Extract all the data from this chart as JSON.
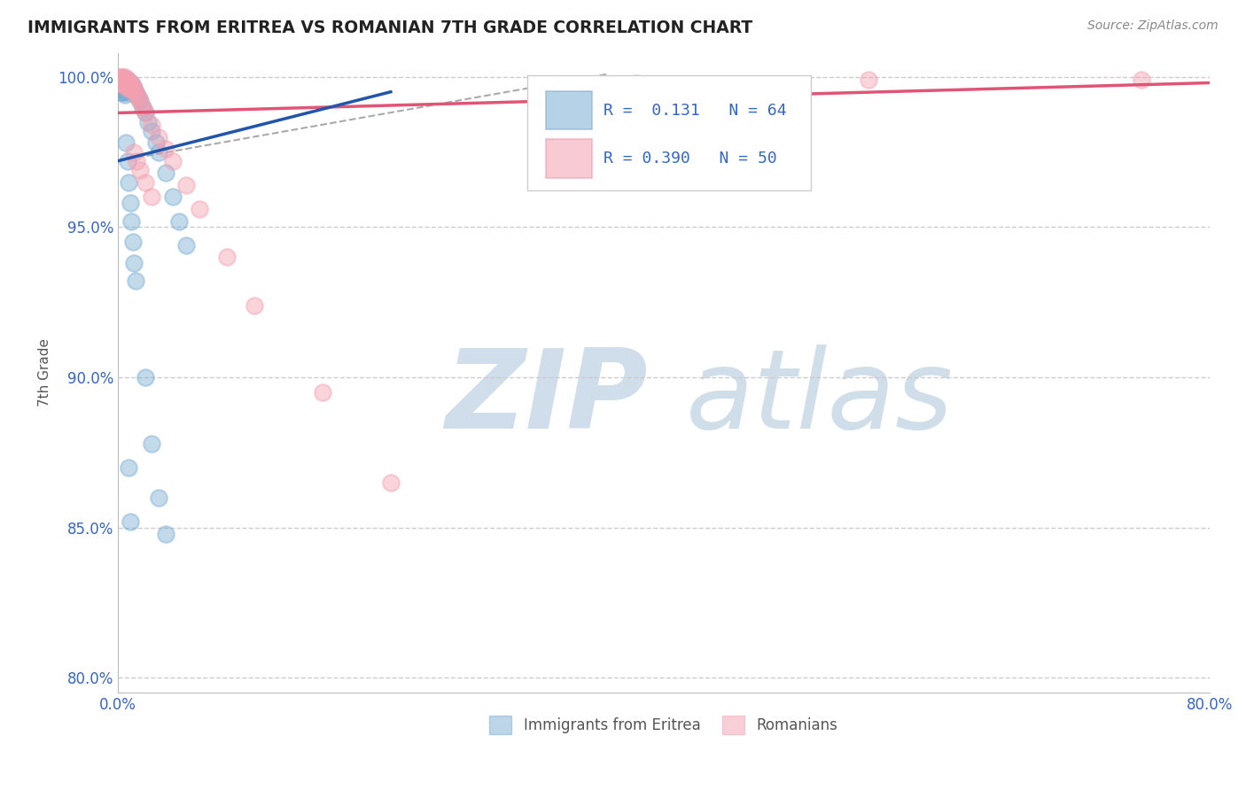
{
  "title": "IMMIGRANTS FROM ERITREA VS ROMANIAN 7TH GRADE CORRELATION CHART",
  "source": "Source: ZipAtlas.com",
  "ylabel": "7th Grade",
  "xlim": [
    0.0,
    0.8
  ],
  "ylim": [
    0.795,
    1.008
  ],
  "yticks": [
    0.8,
    0.85,
    0.9,
    0.95,
    1.0
  ],
  "yticklabels": [
    "80.0%",
    "85.0%",
    "90.0%",
    "95.0%",
    "100.0%"
  ],
  "grid_color": "#cccccc",
  "background": "#ffffff",
  "blue_color": "#7aadd4",
  "pink_color": "#f4a0b0",
  "blue_line_color": "#2255aa",
  "pink_line_color": "#e05575",
  "dash_color": "#aaaaaa",
  "eritrea_x": [
    0.001,
    0.001,
    0.001,
    0.001,
    0.002,
    0.002,
    0.002,
    0.002,
    0.002,
    0.003,
    0.003,
    0.003,
    0.003,
    0.003,
    0.004,
    0.004,
    0.004,
    0.004,
    0.005,
    0.005,
    0.005,
    0.005,
    0.006,
    0.006,
    0.006,
    0.007,
    0.007,
    0.007,
    0.008,
    0.008,
    0.009,
    0.009,
    0.01,
    0.01,
    0.011,
    0.012,
    0.013,
    0.014,
    0.015,
    0.016,
    0.018,
    0.02,
    0.022,
    0.025,
    0.028,
    0.03,
    0.035,
    0.04,
    0.045,
    0.05,
    0.006,
    0.007,
    0.008,
    0.009,
    0.01,
    0.011,
    0.012,
    0.013,
    0.02,
    0.025,
    0.03,
    0.035,
    0.008,
    0.009
  ],
  "eritrea_y": [
    0.999,
    0.998,
    0.997,
    0.996,
    0.999,
    0.998,
    0.997,
    0.996,
    0.995,
    0.999,
    0.998,
    0.997,
    0.996,
    0.995,
    0.999,
    0.998,
    0.997,
    0.995,
    0.999,
    0.998,
    0.996,
    0.994,
    0.999,
    0.998,
    0.996,
    0.999,
    0.997,
    0.995,
    0.998,
    0.996,
    0.998,
    0.996,
    0.998,
    0.996,
    0.997,
    0.996,
    0.995,
    0.994,
    0.993,
    0.992,
    0.99,
    0.988,
    0.985,
    0.982,
    0.978,
    0.975,
    0.968,
    0.96,
    0.952,
    0.944,
    0.978,
    0.972,
    0.965,
    0.958,
    0.952,
    0.945,
    0.938,
    0.932,
    0.9,
    0.878,
    0.86,
    0.848,
    0.87,
    0.852
  ],
  "romanian_x": [
    0.001,
    0.001,
    0.002,
    0.002,
    0.002,
    0.003,
    0.003,
    0.003,
    0.004,
    0.004,
    0.004,
    0.005,
    0.005,
    0.005,
    0.006,
    0.006,
    0.007,
    0.007,
    0.008,
    0.008,
    0.009,
    0.009,
    0.01,
    0.01,
    0.011,
    0.012,
    0.013,
    0.014,
    0.015,
    0.016,
    0.018,
    0.02,
    0.025,
    0.03,
    0.035,
    0.04,
    0.05,
    0.06,
    0.08,
    0.1,
    0.15,
    0.2,
    0.012,
    0.014,
    0.016,
    0.02,
    0.025,
    0.55,
    0.75,
    0.38
  ],
  "romanian_y": [
    1.0,
    0.999,
    1.0,
    0.999,
    0.998,
    1.0,
    0.999,
    0.998,
    1.0,
    0.999,
    0.998,
    1.0,
    0.999,
    0.997,
    0.999,
    0.997,
    0.999,
    0.997,
    0.998,
    0.996,
    0.998,
    0.996,
    0.998,
    0.996,
    0.997,
    0.996,
    0.995,
    0.994,
    0.993,
    0.992,
    0.99,
    0.988,
    0.984,
    0.98,
    0.976,
    0.972,
    0.964,
    0.956,
    0.94,
    0.924,
    0.895,
    0.865,
    0.975,
    0.972,
    0.969,
    0.965,
    0.96,
    0.999,
    0.999,
    0.998
  ],
  "blue_trendline_x": [
    0.0,
    0.2
  ],
  "blue_trendline_y": [
    0.972,
    0.995
  ],
  "pink_trendline_x": [
    0.0,
    0.8
  ],
  "pink_trendline_y": [
    0.988,
    0.998
  ],
  "dash_trendline_x": [
    0.0,
    0.36
  ],
  "dash_trendline_y": [
    0.972,
    1.001
  ]
}
